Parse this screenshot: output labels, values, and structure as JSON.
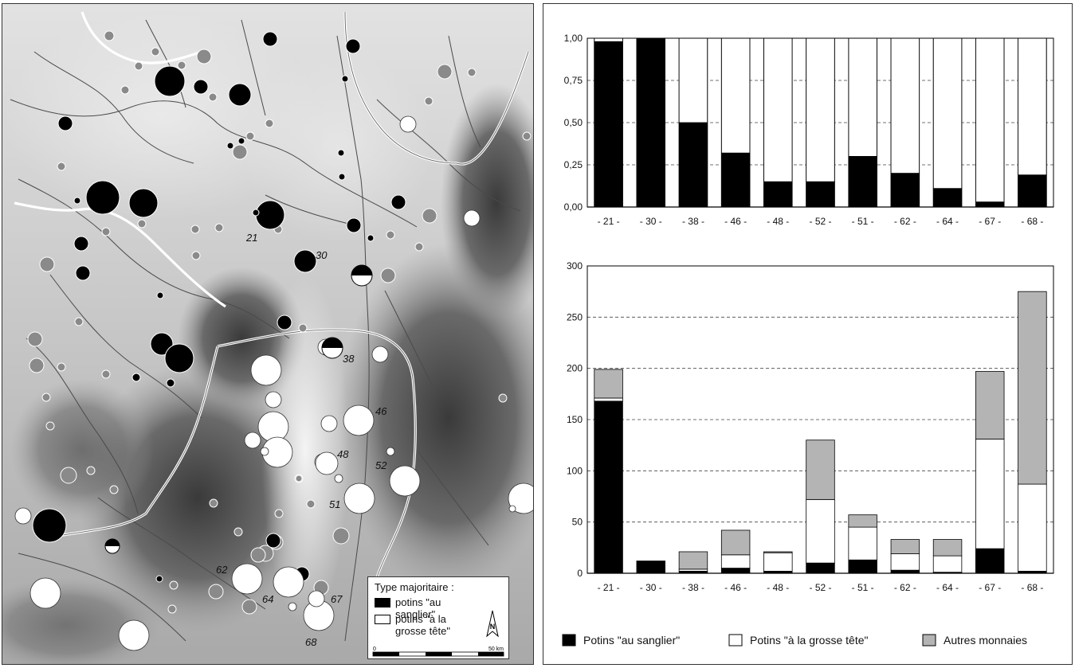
{
  "map": {
    "legend": {
      "title": "Type majoritaire :",
      "items": [
        {
          "label": "potins \"au sanglier\"",
          "color": "#000000"
        },
        {
          "label": "potins \"à la grosse tête\"",
          "color": "#ffffff"
        }
      ],
      "north": "N",
      "scale_start": "0",
      "scale_end": "50 km"
    },
    "site_numbers": [
      "21",
      "30",
      "38",
      "46",
      "48",
      "52",
      "51",
      "62",
      "64",
      "67",
      "68"
    ]
  },
  "chart_data": [
    {
      "type": "bar",
      "stacked": true,
      "categories": [
        "- 21 -",
        "- 30 -",
        "- 38 -",
        "- 46 -",
        "- 48 -",
        "- 52 -",
        "- 51 -",
        "- 62 -",
        "- 64 -",
        "- 67 -",
        "- 68 -"
      ],
      "series": [
        {
          "name": "Potins \"au sanglier\"",
          "color": "#000000",
          "values": [
            0.98,
            1.0,
            0.5,
            0.32,
            0.15,
            0.15,
            0.3,
            0.2,
            0.11,
            0.03,
            0.19
          ]
        },
        {
          "name": "Potins \"à la grosse tête\"",
          "color": "#ffffff",
          "values": [
            0.02,
            0.0,
            0.5,
            0.68,
            0.85,
            0.85,
            0.7,
            0.8,
            0.89,
            0.97,
            0.81
          ]
        }
      ],
      "yticks": [
        "0,00",
        "0,25",
        "0,50",
        "0,75",
        "1,00"
      ],
      "ylim": [
        0,
        1
      ],
      "grid": "dashed horizontal"
    },
    {
      "type": "bar",
      "stacked": true,
      "categories": [
        "- 21 -",
        "- 30 -",
        "- 38 -",
        "- 46 -",
        "- 48 -",
        "- 52 -",
        "- 51 -",
        "- 62 -",
        "- 64 -",
        "- 67 -",
        "- 68 -"
      ],
      "series": [
        {
          "name": "Potins \"au sanglier\"",
          "color": "#000000",
          "values": [
            168,
            12,
            2,
            5,
            2,
            10,
            13,
            3,
            1,
            24,
            2
          ]
        },
        {
          "name": "Potins \"à la grosse tête\"",
          "color": "#ffffff",
          "values": [
            3,
            0,
            2,
            13,
            18,
            62,
            32,
            16,
            16,
            107,
            85
          ]
        },
        {
          "name": "Autres monnaies",
          "color": "#b4b4b4",
          "values": [
            28,
            0,
            17,
            24,
            1,
            58,
            12,
            14,
            16,
            66,
            188
          ]
        }
      ],
      "yticks": [
        "0",
        "50",
        "100",
        "150",
        "200",
        "250",
        "300"
      ],
      "ylim": [
        0,
        300
      ],
      "grid": "dashed horizontal"
    }
  ],
  "chart_legend": [
    {
      "label": "Potins \"au sanglier\"",
      "color": "#000000"
    },
    {
      "label": "Potins \"à la grosse tête\"",
      "color": "#ffffff"
    },
    {
      "label": "Autres monnaies",
      "color": "#b4b4b4"
    }
  ]
}
